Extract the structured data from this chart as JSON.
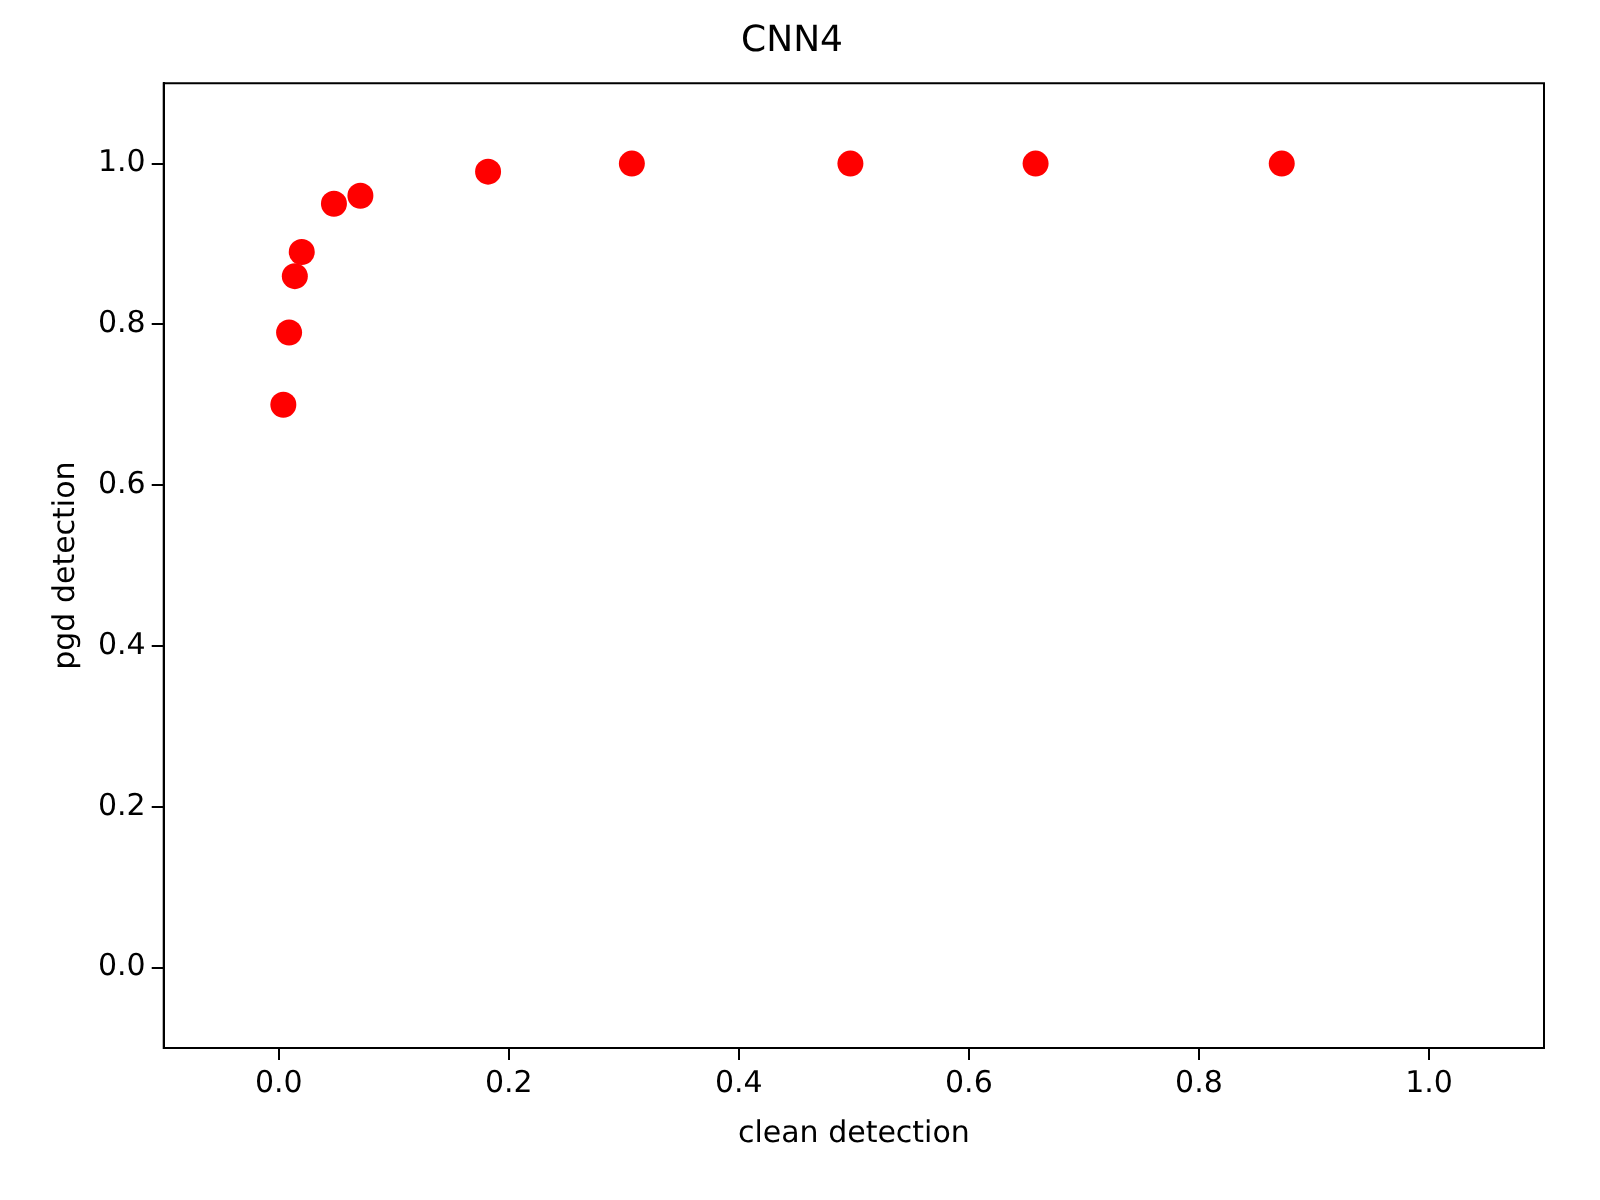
{
  "chart_data": {
    "type": "scatter",
    "title": "CNN4",
    "xlabel": "clean detection",
    "ylabel": "pgd detection",
    "x": [
      0.004,
      0.009,
      0.014,
      0.02,
      0.048,
      0.071,
      0.182,
      0.307,
      0.497,
      0.658,
      0.872
    ],
    "series": [
      {
        "color": "#ff0000",
        "values": [
          0.7,
          0.79,
          0.86,
          0.89,
          0.95,
          0.96,
          0.99,
          1.0,
          1.0,
          1.0,
          1.0
        ]
      }
    ],
    "xlim": [
      -0.1,
      1.1
    ],
    "ylim": [
      -0.1,
      1.1
    ],
    "xticks": [
      {
        "value": 0,
        "label": "0.0"
      },
      {
        "value": 0.2,
        "label": "0.2"
      },
      {
        "value": 0.4,
        "label": "0.4"
      },
      {
        "value": 0.6,
        "label": "0.6"
      },
      {
        "value": 0.8,
        "label": "0.8"
      },
      {
        "value": 1,
        "label": "1.0"
      }
    ],
    "yticks": [
      {
        "value": 0,
        "label": "0.0"
      },
      {
        "value": 0.2,
        "label": "0.2"
      },
      {
        "value": 0.4,
        "label": "0.4"
      },
      {
        "value": 0.6,
        "label": "0.6"
      },
      {
        "value": 0.8,
        "label": "0.8"
      },
      {
        "value": 1,
        "label": "1.0"
      }
    ],
    "grid": false,
    "legend": false,
    "marker": "circle"
  }
}
